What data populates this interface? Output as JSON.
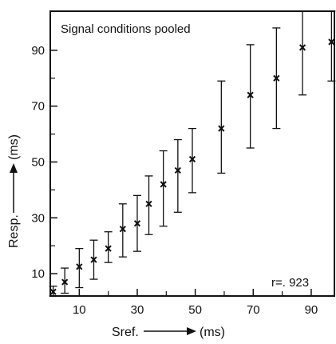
{
  "chart_data": {
    "type": "scatter",
    "title": "",
    "annotation": "Signal conditions pooled",
    "stat": "r=. 923",
    "xlabel": "Sref.",
    "xunit": "(ms)",
    "ylabel": "Resp.",
    "yunit": "(ms)",
    "xlim": [
      0,
      98
    ],
    "ylim": [
      2,
      104
    ],
    "xticks": [
      10,
      30,
      50,
      70,
      90
    ],
    "xticks_minor": [
      20,
      40,
      60,
      80
    ],
    "yticks": [
      10,
      30,
      50,
      70,
      90
    ],
    "yticks_minor": [
      20,
      40,
      60,
      80
    ],
    "grid": false,
    "points": [
      {
        "x": 1,
        "y": 3.5,
        "low": 2,
        "high": 5.5
      },
      {
        "x": 5,
        "y": 7,
        "low": 3,
        "high": 12
      },
      {
        "x": 10,
        "y": 12.5,
        "low": 5,
        "high": 19
      },
      {
        "x": 15,
        "y": 15,
        "low": 8,
        "high": 22
      },
      {
        "x": 20,
        "y": 19,
        "low": 14,
        "high": 25
      },
      {
        "x": 25,
        "y": 26,
        "low": 16,
        "high": 35
      },
      {
        "x": 30,
        "y": 28,
        "low": 18,
        "high": 38
      },
      {
        "x": 34,
        "y": 35,
        "low": 24,
        "high": 45
      },
      {
        "x": 39,
        "y": 42,
        "low": 27,
        "high": 54
      },
      {
        "x": 44,
        "y": 47,
        "low": 32,
        "high": 58
      },
      {
        "x": 49,
        "y": 51,
        "low": 39,
        "high": 62
      },
      {
        "x": 59,
        "y": 62,
        "low": 46,
        "high": 79
      },
      {
        "x": 69,
        "y": 74,
        "low": 55,
        "high": 92
      },
      {
        "x": 78,
        "y": 80,
        "low": 62,
        "high": 98
      },
      {
        "x": 87,
        "y": 91,
        "low": 74,
        "high": 108
      },
      {
        "x": 97,
        "y": 93,
        "low": 79,
        "high": 104
      }
    ]
  }
}
